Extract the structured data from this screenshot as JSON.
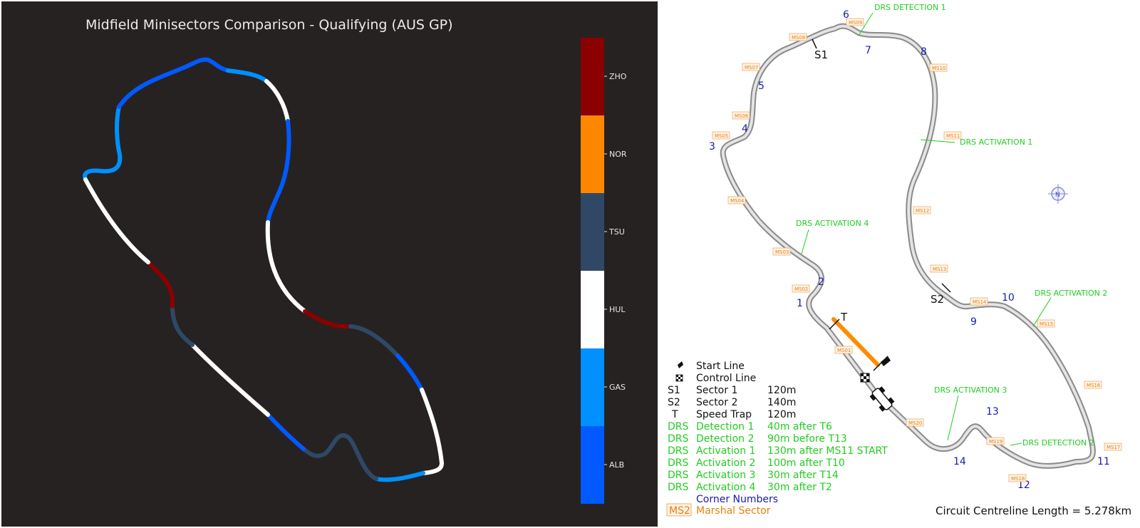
{
  "left": {
    "title": "Midfield Minisectors Comparison - Qualifying (AUS GP)",
    "colorbar": [
      {
        "driver": "ZHO",
        "color": "#8b0000"
      },
      {
        "driver": "NOR",
        "color": "#ff8700"
      },
      {
        "driver": "TSU",
        "color": "#2f4866"
      },
      {
        "driver": "HUL",
        "color": "#ffffff"
      },
      {
        "driver": "GAS",
        "color": "#0090ff"
      },
      {
        "driver": "ALB",
        "color": "#005aff"
      }
    ]
  },
  "right": {
    "corners": [
      "1",
      "2",
      "3",
      "4",
      "5",
      "6",
      "7",
      "8",
      "9",
      "10",
      "11",
      "12",
      "13",
      "14"
    ],
    "sector_labels": {
      "s1": "S1",
      "s2": "S2",
      "t": "T"
    },
    "drs_labels": {
      "det1": "DRS DETECTION 1",
      "det2": "DRS DETECTION 2",
      "act1": "DRS ACTIVATION 1",
      "act2": "DRS ACTIVATION 2",
      "act3": "DRS ACTIVATION 3",
      "act4": "DRS ACTIVATION 4"
    },
    "marshal_sectors": [
      "MS01",
      "MS02",
      "MS03",
      "MS04",
      "MS05",
      "MS06",
      "MS07",
      "MS08",
      "MS09",
      "MS10",
      "MS11",
      "MS12",
      "MS13",
      "MS14",
      "MS15",
      "MS16",
      "MS17",
      "MS18",
      "MS19",
      "MS20"
    ],
    "legend": [
      {
        "code": "",
        "name": "Start Line",
        "value": "",
        "color": "#111111",
        "icon": "start-line-icon"
      },
      {
        "code": "",
        "name": "Control Line",
        "value": "",
        "color": "#111111",
        "icon": "checkered-flag-icon"
      },
      {
        "code": "S1",
        "name": "Sector 1",
        "value": "120m",
        "color": "#111111"
      },
      {
        "code": "S2",
        "name": "Sector 2",
        "value": "140m",
        "color": "#111111"
      },
      {
        "code": "T",
        "name": "Speed Trap",
        "value": "120m",
        "color": "#111111"
      },
      {
        "code": "DRS",
        "name": "Detection 1",
        "value": "40m after T6",
        "color": "#22cc22"
      },
      {
        "code": "DRS",
        "name": "Detection 2",
        "value": "90m before T13",
        "color": "#22cc22"
      },
      {
        "code": "DRS",
        "name": "Activation 1",
        "value": "130m after MS11 START",
        "color": "#22cc22"
      },
      {
        "code": "DRS",
        "name": "Activation 2",
        "value": "100m after T10",
        "color": "#22cc22"
      },
      {
        "code": "DRS",
        "name": "Activation 3",
        "value": "30m after T14",
        "color": "#22cc22"
      },
      {
        "code": "DRS",
        "name": "Activation 4",
        "value": "30m after T2",
        "color": "#22cc22"
      },
      {
        "code": "",
        "name": "Corner Numbers",
        "value": "",
        "color": "#1a1aaa"
      },
      {
        "code": "MS2",
        "name": "Marshal Sector",
        "value": "",
        "color": "#e8800a"
      }
    ],
    "circuit_length": "Circuit Centreline Length = 5.278km",
    "compass": "N"
  }
}
